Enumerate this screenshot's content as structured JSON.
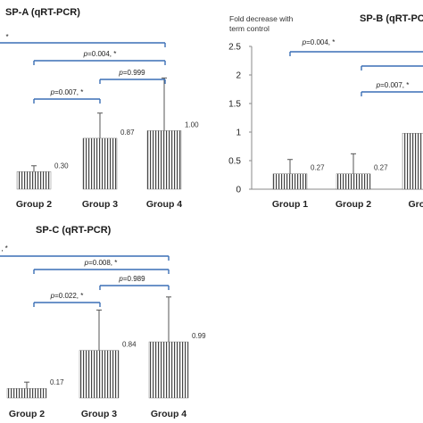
{
  "chart_data": [
    {
      "type": "bar",
      "title": "SP-A (qRT-PCR)",
      "ylabel": "",
      "categories": [
        "Group 2",
        "Group 3",
        "Group 4"
      ],
      "values": [
        0.3,
        0.87,
        1.0
      ],
      "error_upper": [
        0.4,
        1.3,
        1.9
      ],
      "value_labels": [
        "0.30",
        "0.87",
        "1.00"
      ],
      "ylim": [
        0,
        2.5
      ],
      "annotations": [
        {
          "text": "*",
          "from": "Group 1",
          "to": "Group 4"
        },
        {
          "text": "p=0.004, *",
          "from": "Group 2",
          "to": "Group 4"
        },
        {
          "text": "p=0.007, *",
          "from": "Group 2",
          "to": "Group 3"
        },
        {
          "text": "p=0.999",
          "from": "Group 3",
          "to": "Group 4"
        }
      ]
    },
    {
      "type": "bar",
      "title": "SP-B (qRT-PCR)",
      "ylabel": "Fold decrease with term control",
      "categories": [
        "Group 1",
        "Group 2",
        "Grou"
      ],
      "values": [
        0.27,
        0.27,
        0.98
      ],
      "error_upper": [
        0.52,
        0.62,
        null
      ],
      "value_labels": [
        "0.27",
        "0.27",
        ""
      ],
      "ylim": [
        0,
        2.5
      ],
      "yticks": [
        "0",
        "0.5",
        "1",
        "1.5",
        "2",
        "2.5"
      ],
      "annotations": [
        {
          "text": "p=0.004, *",
          "from": "Group 1",
          "to": "Group 3"
        },
        {
          "text": "",
          "from": "Group 2",
          "to": "Group 3"
        },
        {
          "text": "p=0.007, *",
          "from": "Group 2",
          "to": "Group 3"
        }
      ]
    },
    {
      "type": "bar",
      "title": "SP-C (qRT-PCR)",
      "ylabel": "",
      "categories": [
        "Group 2",
        "Group 3",
        "Group 4"
      ],
      "values": [
        0.17,
        0.84,
        0.99
      ],
      "error_upper": [
        0.28,
        1.55,
        1.78
      ],
      "value_labels": [
        "0.17",
        "0.84",
        "0.99"
      ],
      "ylim": [
        0,
        2.5
      ],
      "annotations": [
        {
          "text": ", *",
          "from": "Group 1",
          "to": "Group 4"
        },
        {
          "text": "p=0.008, *",
          "from": "Group 2",
          "to": "Group 4"
        },
        {
          "text": "p=0.022, *",
          "from": "Group 2",
          "to": "Group 3"
        },
        {
          "text": "p=0.989",
          "from": "Group 3",
          "to": "Group 4"
        }
      ]
    }
  ]
}
